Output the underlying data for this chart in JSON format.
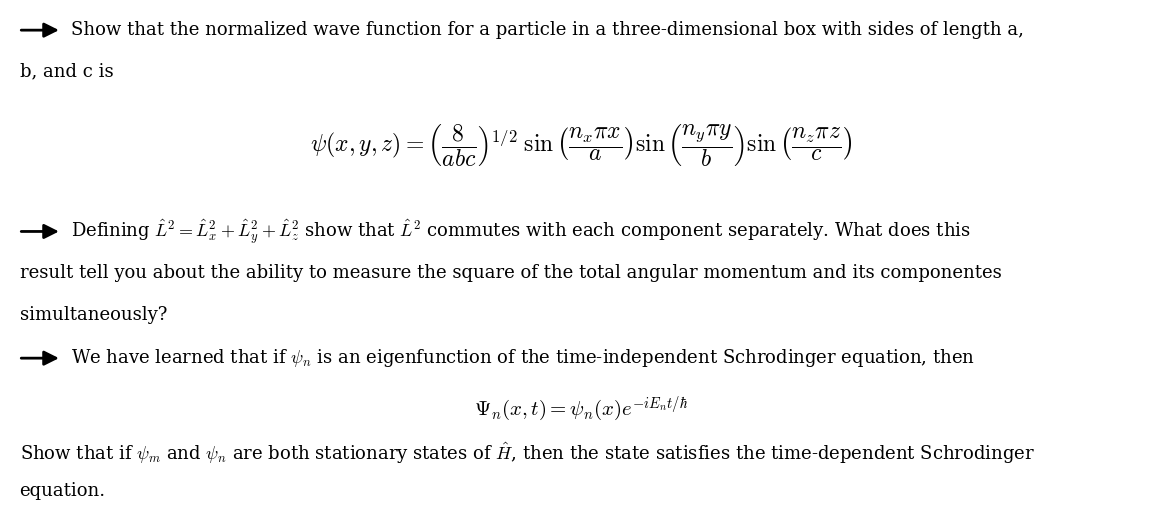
{
  "background_color": "#ffffff",
  "fig_width": 11.62,
  "fig_height": 5.11,
  "dpi": 100,
  "text_color": "#000000",
  "line1_text": "Show that the normalized wave function for a particle in a three-dimensional box with sides of length a,",
  "line2_text": "b, and c is",
  "equation1": "$\\psi(x, y, z) = \\left(\\dfrac{8}{abc}\\right)^{1/2} \\; \\sin\\left(\\dfrac{n_x \\pi x}{a}\\right) \\sin\\left(\\dfrac{n_y \\pi y}{b}\\right) \\sin\\left(\\dfrac{n_z \\pi z}{c}\\right)$",
  "line3_text": "Defining $\\hat{L}^2 = \\hat{L}_x^2 + \\hat{L}_y^2 + \\hat{L}_z^2$ show that $\\hat{L}^2$ commutes with each component separately. What does this",
  "line4_text": "result tell you about the ability to measure the square of the total angular momentum and its componentes",
  "line5_text": "simultaneously?",
  "line6_text": "We have learned that if $\\psi_n$ is an eigenfunction of the time-independent Schrodinger equation, then",
  "equation2": "$\\Psi_n(x,t) = \\psi_n(x)e^{-iE_n t/\\hbar}$",
  "line7_text": "Show that if $\\psi_m$ and $\\psi_n$ are both stationary states of $\\hat{H}$, then the state satisfies the time-dependent Schrodinger",
  "line8_text": "equation.",
  "font_size_body": 13.0,
  "font_size_eq1": 17,
  "font_size_eq2": 15
}
